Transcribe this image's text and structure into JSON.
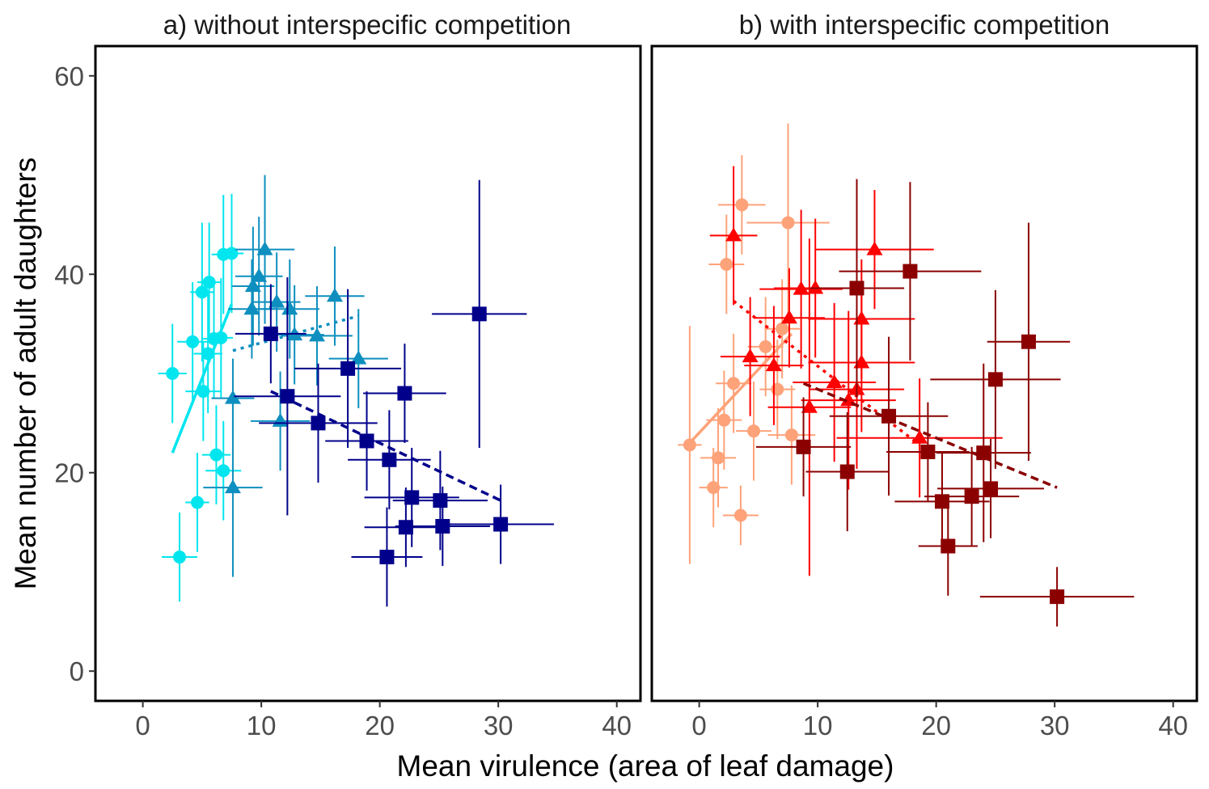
{
  "chart_data": {
    "type": "scatter",
    "xlabel": "Mean virulence (area of leaf damage)",
    "ylabel": "Mean number of adult daughters",
    "xlim": [
      -4,
      42
    ],
    "ylim": [
      -3,
      63
    ],
    "xticks": [
      "0",
      "10",
      "20",
      "30",
      "40"
    ],
    "yticks": [
      "0",
      "20",
      "40",
      "60"
    ],
    "xtick_values": [
      0,
      10,
      20,
      30,
      40
    ],
    "ytick_values": [
      0,
      20,
      40,
      60
    ],
    "grid": false,
    "legend": "none",
    "panels": [
      {
        "title": "a) without interspecific competition",
        "series": [
          {
            "color": "#00e5ee",
            "marker": "circle",
            "points": [
              {
                "x": 2.5,
                "y": 30,
                "xerr": 1.2,
                "yerr": 5
              },
              {
                "x": 3.1,
                "y": 11.5,
                "xerr": 1.5,
                "yerr": 4.5
              },
              {
                "x": 4.2,
                "y": 33.2,
                "xerr": 1.3,
                "yerr": 6
              },
              {
                "x": 4.6,
                "y": 17,
                "xerr": 1,
                "yerr": 5
              },
              {
                "x": 5.0,
                "y": 38.2,
                "xerr": 1,
                "yerr": 7
              },
              {
                "x": 5.1,
                "y": 28.2,
                "xerr": 1.5,
                "yerr": 5
              },
              {
                "x": 5.5,
                "y": 32,
                "xerr": 1.2,
                "yerr": 6
              },
              {
                "x": 5.6,
                "y": 39.2,
                "xerr": 1,
                "yerr": 6
              },
              {
                "x": 6.0,
                "y": 33.5,
                "xerr": 1,
                "yerr": 6
              },
              {
                "x": 6.2,
                "y": 21.8,
                "xerr": 1.2,
                "yerr": 5
              },
              {
                "x": 6.6,
                "y": 33.6,
                "xerr": 1,
                "yerr": 6
              },
              {
                "x": 6.8,
                "y": 20.2,
                "xerr": 1.5,
                "yerr": 5
              },
              {
                "x": 6.8,
                "y": 42,
                "xerr": 1,
                "yerr": 6
              },
              {
                "x": 7.5,
                "y": 42.1,
                "xerr": 1,
                "yerr": 6
              }
            ],
            "fit": {
              "x": [
                2.5,
                7.5
              ],
              "y": [
                22,
                37
              ],
              "dash": "solid"
            }
          },
          {
            "color": "#0e8fbf",
            "marker": "triangle",
            "points": [
              {
                "x": 7.6,
                "y": 27.5,
                "xerr": 1.8,
                "yerr": 4
              },
              {
                "x": 7.6,
                "y": 18.5,
                "xerr": 2.5,
                "yerr": 9
              },
              {
                "x": 9.2,
                "y": 36.5,
                "xerr": 2,
                "yerr": 5
              },
              {
                "x": 9.3,
                "y": 38.8,
                "xerr": 1.8,
                "yerr": 6
              },
              {
                "x": 9.8,
                "y": 39.8,
                "xerr": 2,
                "yerr": 6
              },
              {
                "x": 10.3,
                "y": 42.5,
                "xerr": 2.5,
                "yerr": 7.5
              },
              {
                "x": 11.3,
                "y": 37.2,
                "xerr": 2,
                "yerr": 5
              },
              {
                "x": 11.6,
                "y": 25.2,
                "xerr": 2.5,
                "yerr": 5
              },
              {
                "x": 12.4,
                "y": 36.5,
                "xerr": 2.5,
                "yerr": 5
              },
              {
                "x": 12.8,
                "y": 33.9,
                "xerr": 2.5,
                "yerr": 5
              },
              {
                "x": 14.7,
                "y": 33.8,
                "xerr": 3,
                "yerr": 5
              },
              {
                "x": 16.2,
                "y": 37.8,
                "xerr": 2.5,
                "yerr": 5
              },
              {
                "x": 18.2,
                "y": 31.5,
                "xerr": 2.5,
                "yerr": 5
              }
            ],
            "fit": {
              "x": [
                7.6,
                18.2
              ],
              "y": [
                32.3,
                35.8
              ],
              "dash": "dotted"
            }
          },
          {
            "color": "#00008b",
            "marker": "square",
            "points": [
              {
                "x": 10.8,
                "y": 34,
                "xerr": 3,
                "yerr": 5
              },
              {
                "x": 12.2,
                "y": 27.7,
                "xerr": 4.5,
                "yerr": 12
              },
              {
                "x": 14.8,
                "y": 25,
                "xerr": 5,
                "yerr": 6
              },
              {
                "x": 17.3,
                "y": 30.5,
                "xerr": 4.5,
                "yerr": 8
              },
              {
                "x": 18.9,
                "y": 23.2,
                "xerr": 3.5,
                "yerr": 5
              },
              {
                "x": 20.8,
                "y": 21.3,
                "xerr": 3.5,
                "yerr": 5
              },
              {
                "x": 20.6,
                "y": 11.5,
                "xerr": 3,
                "yerr": 5
              },
              {
                "x": 22.1,
                "y": 28,
                "xerr": 3.5,
                "yerr": 5
              },
              {
                "x": 22.2,
                "y": 14.5,
                "xerr": 3.5,
                "yerr": 4
              },
              {
                "x": 22.7,
                "y": 17.5,
                "xerr": 4,
                "yerr": 5
              },
              {
                "x": 25.1,
                "y": 17.2,
                "xerr": 4,
                "yerr": 5
              },
              {
                "x": 25.3,
                "y": 14.6,
                "xerr": 4,
                "yerr": 4
              },
              {
                "x": 28.4,
                "y": 36,
                "xerr": 4,
                "yerr": 13.5
              },
              {
                "x": 30.2,
                "y": 14.8,
                "xerr": 4.5,
                "yerr": 4
              }
            ],
            "fit": {
              "x": [
                10.8,
                30.2
              ],
              "y": [
                28.2,
                17.2
              ],
              "dash": "dashed"
            }
          }
        ]
      },
      {
        "title": "b) with interspecific competition",
        "series": [
          {
            "color": "#fea279",
            "marker": "circle",
            "points": [
              {
                "x": -0.8,
                "y": 22.8,
                "xerr": 1,
                "yerr": 12
              },
              {
                "x": 1.2,
                "y": 18.5,
                "xerr": 1.2,
                "yerr": 4
              },
              {
                "x": 1.6,
                "y": 21.5,
                "xerr": 1.5,
                "yerr": 5
              },
              {
                "x": 2.1,
                "y": 25.3,
                "xerr": 1.5,
                "yerr": 5
              },
              {
                "x": 2.3,
                "y": 41,
                "xerr": 1.5,
                "yerr": 5
              },
              {
                "x": 2.9,
                "y": 29,
                "xerr": 1.5,
                "yerr": 5
              },
              {
                "x": 3.5,
                "y": 15.7,
                "xerr": 1.5,
                "yerr": 3
              },
              {
                "x": 3.6,
                "y": 47,
                "xerr": 2,
                "yerr": 5
              },
              {
                "x": 4.6,
                "y": 24.2,
                "xerr": 1.5,
                "yerr": 5
              },
              {
                "x": 5.6,
                "y": 32.7,
                "xerr": 1.5,
                "yerr": 5
              },
              {
                "x": 6.6,
                "y": 28.4,
                "xerr": 1.5,
                "yerr": 5
              },
              {
                "x": 7.0,
                "y": 34.5,
                "xerr": 1.5,
                "yerr": 5
              },
              {
                "x": 7.5,
                "y": 45.2,
                "xerr": 3.5,
                "yerr": 10
              },
              {
                "x": 7.8,
                "y": 23.8,
                "xerr": 2,
                "yerr": 5
              }
            ],
            "fit": {
              "x": [
                -0.8,
                7.8
              ],
              "y": [
                23,
                34
              ],
              "dash": "solid"
            }
          },
          {
            "color": "#ff0000",
            "marker": "triangle",
            "points": [
              {
                "x": 2.9,
                "y": 43.9,
                "xerr": 2,
                "yerr": 7
              },
              {
                "x": 4.3,
                "y": 31.7,
                "xerr": 2.5,
                "yerr": 6
              },
              {
                "x": 6.3,
                "y": 30.8,
                "xerr": 2.5,
                "yerr": 6
              },
              {
                "x": 7.6,
                "y": 35.6,
                "xerr": 3,
                "yerr": 5
              },
              {
                "x": 8.6,
                "y": 38.5,
                "xerr": 3.5,
                "yerr": 8
              },
              {
                "x": 9.3,
                "y": 26.6,
                "xerr": 3.5,
                "yerr": 17
              },
              {
                "x": 9.8,
                "y": 38.6,
                "xerr": 3.5,
                "yerr": 7
              },
              {
                "x": 11.4,
                "y": 29.1,
                "xerr": 3.5,
                "yerr": 8
              },
              {
                "x": 12.6,
                "y": 27.3,
                "xerr": 4,
                "yerr": 9
              },
              {
                "x": 13.3,
                "y": 28.4,
                "xerr": 4,
                "yerr": 8
              },
              {
                "x": 13.7,
                "y": 35.5,
                "xerr": 4.5,
                "yerr": 6
              },
              {
                "x": 13.7,
                "y": 31.1,
                "xerr": 4.5,
                "yerr": 7
              },
              {
                "x": 14.8,
                "y": 42.5,
                "xerr": 5,
                "yerr": 6
              },
              {
                "x": 18.6,
                "y": 23.5,
                "xerr": 7,
                "yerr": 6
              }
            ],
            "fit": {
              "x": [
                2.9,
                18.6
              ],
              "y": [
                37.3,
                22.8
              ],
              "dash": "dotted"
            }
          },
          {
            "color": "#8b0000",
            "marker": "square",
            "points": [
              {
                "x": 8.8,
                "y": 22.6,
                "xerr": 4,
                "yerr": 5
              },
              {
                "x": 12.5,
                "y": 20.1,
                "xerr": 3.5,
                "yerr": 6
              },
              {
                "x": 13.3,
                "y": 38.6,
                "xerr": 4,
                "yerr": 11
              },
              {
                "x": 16.0,
                "y": 25.7,
                "xerr": 5,
                "yerr": 8
              },
              {
                "x": 17.8,
                "y": 40.3,
                "xerr": 6,
                "yerr": 9
              },
              {
                "x": 19.3,
                "y": 22.1,
                "xerr": 3.5,
                "yerr": 5
              },
              {
                "x": 20.5,
                "y": 17.1,
                "xerr": 4,
                "yerr": 5
              },
              {
                "x": 21.0,
                "y": 12.6,
                "xerr": 2.5,
                "yerr": 5
              },
              {
                "x": 23.0,
                "y": 17.6,
                "xerr": 4,
                "yerr": 5
              },
              {
                "x": 24.0,
                "y": 22,
                "xerr": 4,
                "yerr": 9
              },
              {
                "x": 24.6,
                "y": 18.4,
                "xerr": 4.5,
                "yerr": 5
              },
              {
                "x": 25.0,
                "y": 29.4,
                "xerr": 5.5,
                "yerr": 9
              },
              {
                "x": 27.8,
                "y": 33.2,
                "xerr": 3.5,
                "yerr": 12
              },
              {
                "x": 30.2,
                "y": 7.5,
                "xerr": 6.5,
                "yerr": 3
              }
            ],
            "fit": {
              "x": [
                8.8,
                30.2
              ],
              "y": [
                29,
                18.5
              ],
              "dash": "dashed"
            }
          }
        ]
      }
    ]
  }
}
